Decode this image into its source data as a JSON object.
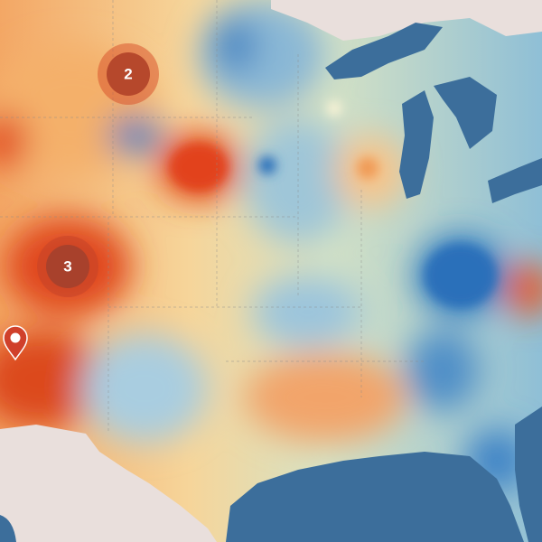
{
  "markers": [
    {
      "label": "2"
    },
    {
      "label": "3"
    }
  ]
}
